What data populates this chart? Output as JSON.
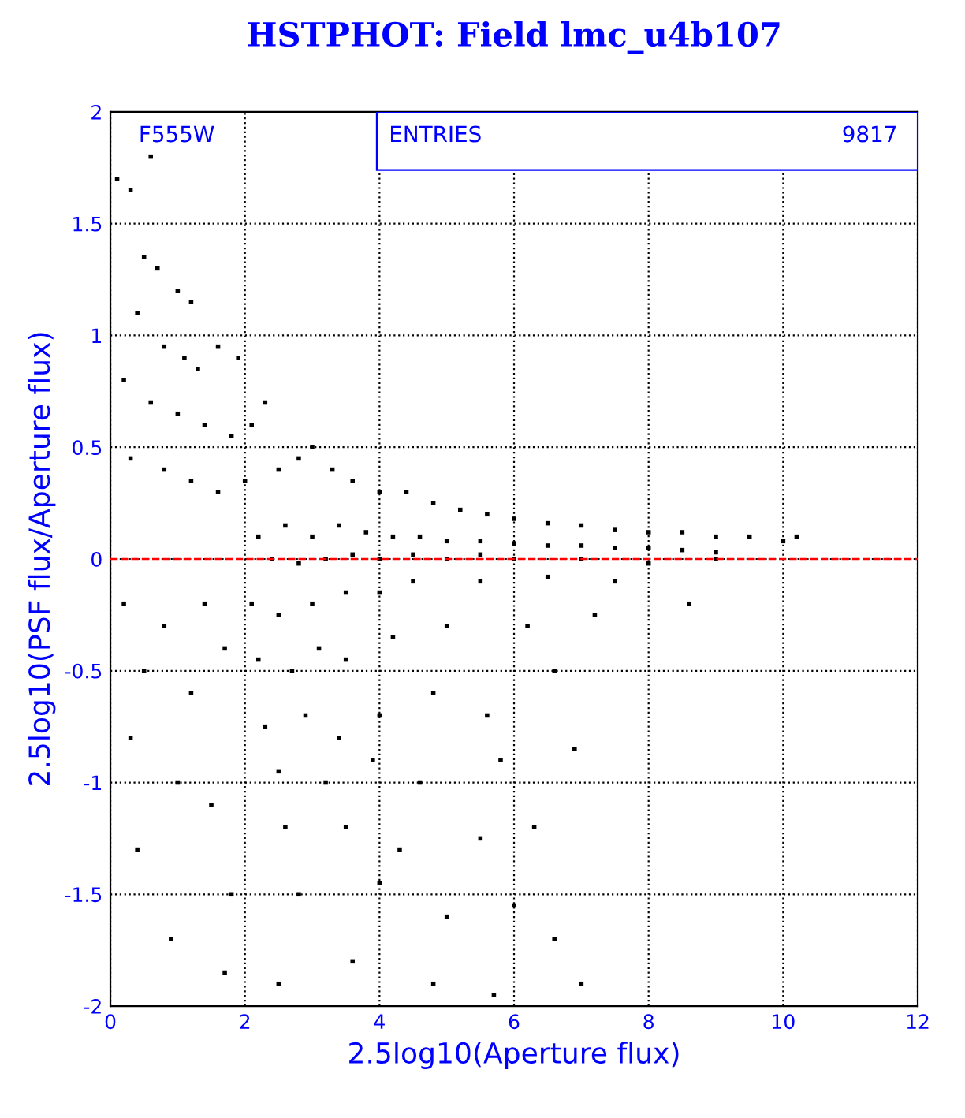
{
  "chart_data": {
    "type": "scatter",
    "title": "HSTPHOT: Field lmc_u4b107",
    "xlabel": "2.5log10(Aperture flux)",
    "ylabel": "2.5log10(PSF flux/Aperture flux)",
    "annotations": [
      "F555W",
      "ENTRIES",
      "9817"
    ],
    "xlim": [
      0,
      12
    ],
    "xticks": [
      0,
      2,
      4,
      6,
      8,
      10,
      12
    ],
    "ylim": [
      -2,
      2
    ],
    "yticks": [
      -2,
      -1.5,
      -1,
      -0.5,
      0,
      0.5,
      1,
      1.5,
      2
    ],
    "grid": true,
    "marker": "square",
    "ref_lines": [
      {
        "axis": "y",
        "value": 0,
        "label": null,
        "color": "#ff0000",
        "line_style": "dashed"
      }
    ],
    "series": [
      {
        "color": "#000000",
        "x": [
          0.1,
          0.3,
          0.6,
          0.5,
          0.7,
          1.0,
          1.2,
          0.4,
          0.8,
          1.1,
          1.3,
          1.6,
          1.9,
          0.2,
          0.6,
          1.0,
          1.4,
          1.8,
          2.1,
          2.3,
          0.3,
          0.8,
          1.2,
          1.6,
          2.0,
          2.5,
          2.8,
          3.0,
          3.3,
          3.6,
          4.0,
          4.4,
          4.8,
          5.2,
          5.6,
          6.0,
          6.5,
          7.0,
          7.5,
          8.0,
          8.5,
          9.0,
          9.5,
          10.0,
          10.2,
          2.2,
          2.6,
          3.0,
          3.4,
          3.8,
          4.2,
          4.6,
          5.0,
          5.5,
          6.0,
          6.5,
          7.0,
          7.5,
          8.0,
          8.5,
          9.0,
          2.4,
          2.8,
          3.2,
          3.6,
          4.0,
          4.5,
          5.0,
          5.5,
          6.0,
          7.0,
          8.0,
          9.0,
          2.1,
          2.5,
          3.0,
          3.5,
          4.0,
          4.5,
          5.5,
          6.5,
          7.5,
          2.2,
          2.7,
          3.1,
          3.5,
          4.2,
          5.0,
          6.2,
          7.2,
          8.6,
          2.3,
          2.9,
          3.4,
          4.0,
          4.8,
          5.6,
          6.6,
          2.5,
          3.2,
          3.9,
          4.6,
          5.8,
          6.9,
          1.5,
          2.6,
          3.5,
          4.3,
          5.5,
          6.3,
          1.8,
          2.8,
          4.0,
          5.0,
          6.0,
          6.6,
          1.7,
          2.5,
          3.6,
          4.8,
          5.7,
          7.0,
          0.2,
          0.5,
          0.3,
          0.8,
          1.2,
          1.0,
          0.4,
          0.9,
          1.4,
          1.7
        ],
        "values": [
          1.7,
          1.65,
          1.8,
          1.35,
          1.3,
          1.2,
          1.15,
          1.1,
          0.95,
          0.9,
          0.85,
          0.95,
          0.9,
          0.8,
          0.7,
          0.65,
          0.6,
          0.55,
          0.6,
          0.7,
          0.45,
          0.4,
          0.35,
          0.3,
          0.35,
          0.4,
          0.45,
          0.5,
          0.4,
          0.35,
          0.3,
          0.3,
          0.25,
          0.22,
          0.2,
          0.18,
          0.16,
          0.15,
          0.13,
          0.12,
          0.12,
          0.1,
          0.1,
          0.08,
          0.1,
          0.1,
          0.15,
          0.1,
          0.15,
          0.12,
          0.1,
          0.1,
          0.08,
          0.08,
          0.07,
          0.06,
          0.06,
          0.05,
          0.05,
          0.04,
          0.03,
          0.0,
          -0.02,
          0.0,
          0.02,
          0.0,
          0.02,
          0.0,
          0.02,
          0.0,
          0.0,
          -0.02,
          0.0,
          -0.2,
          -0.25,
          -0.2,
          -0.15,
          -0.15,
          -0.1,
          -0.1,
          -0.08,
          -0.1,
          -0.45,
          -0.5,
          -0.4,
          -0.45,
          -0.35,
          -0.3,
          -0.3,
          -0.25,
          -0.2,
          -0.75,
          -0.7,
          -0.8,
          -0.7,
          -0.6,
          -0.7,
          -0.5,
          -0.95,
          -1.0,
          -0.9,
          -1.0,
          -0.9,
          -0.85,
          -1.1,
          -1.2,
          -1.2,
          -1.3,
          -1.25,
          -1.2,
          -1.5,
          -1.5,
          -1.45,
          -1.6,
          -1.55,
          -1.7,
          -1.85,
          -1.9,
          -1.8,
          -1.9,
          -1.95,
          -1.9,
          -0.2,
          -0.5,
          -0.8,
          -0.3,
          -0.6,
          -1.0,
          -1.3,
          -1.7,
          -0.2,
          -0.4
        ]
      }
    ]
  }
}
